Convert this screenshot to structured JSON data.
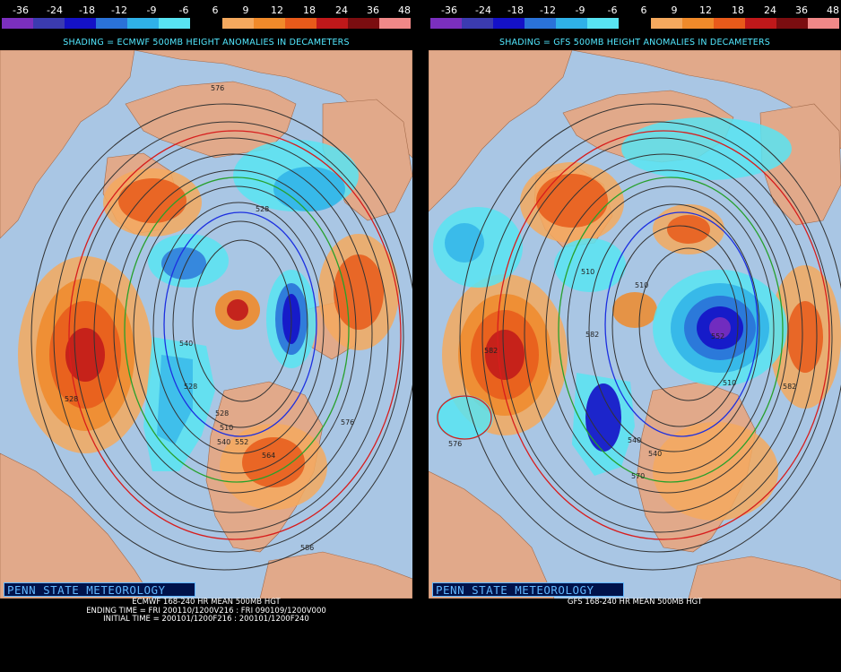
{
  "scale": {
    "labels": [
      "-36",
      "-24",
      "-18",
      "-12",
      "-9",
      "-6",
      "6",
      "9",
      "12",
      "18",
      "24",
      "36",
      "48"
    ],
    "colors": [
      "#7b2fbe",
      "#3b3bb0",
      "#1411c7",
      "#2a72d8",
      "#2fb1e8",
      "#58e4f2",
      "#000000",
      "#f5a95e",
      "#f08a2a",
      "#e85a1a",
      "#c0181a",
      "#7b0d10",
      "#f08888"
    ]
  },
  "left": {
    "shading_title": "SHADING = ECMWF 500MB HEIGHT ANOMALIES IN DECAMETERS",
    "brand": "PENN STATE METEOROLOGY",
    "footer_lines": [
      "ECMWF 168-240 HR MEAN 500MB HGT",
      "ENDING TIME = FRI 200110/1200V216 : FRI 090109/1200V000",
      "INITIAL TIME = 200101/1200F216 : 200101/1200F240"
    ],
    "contour_labels": [
      "576",
      "528",
      "528",
      "528",
      "540",
      "510",
      "576",
      "528",
      "540",
      "552",
      "564",
      "586"
    ]
  },
  "right": {
    "shading_title": "SHADING = GFS 500MB HEIGHT ANOMALIES IN DECAMETERS",
    "brand": "PENN STATE METEOROLOGY",
    "footer_lines": [
      "GFS 168-240 HR MEAN 500MB HGT"
    ],
    "contour_labels": [
      "510",
      "510",
      "582",
      "582",
      "582",
      "552",
      "510",
      "540",
      "570",
      "540",
      "576"
    ]
  },
  "colors": {
    "ocean": "#a9c6e4",
    "land": "#e1a98a",
    "accent_text": "#52e8ff",
    "brand_border": "#62b8ff"
  }
}
